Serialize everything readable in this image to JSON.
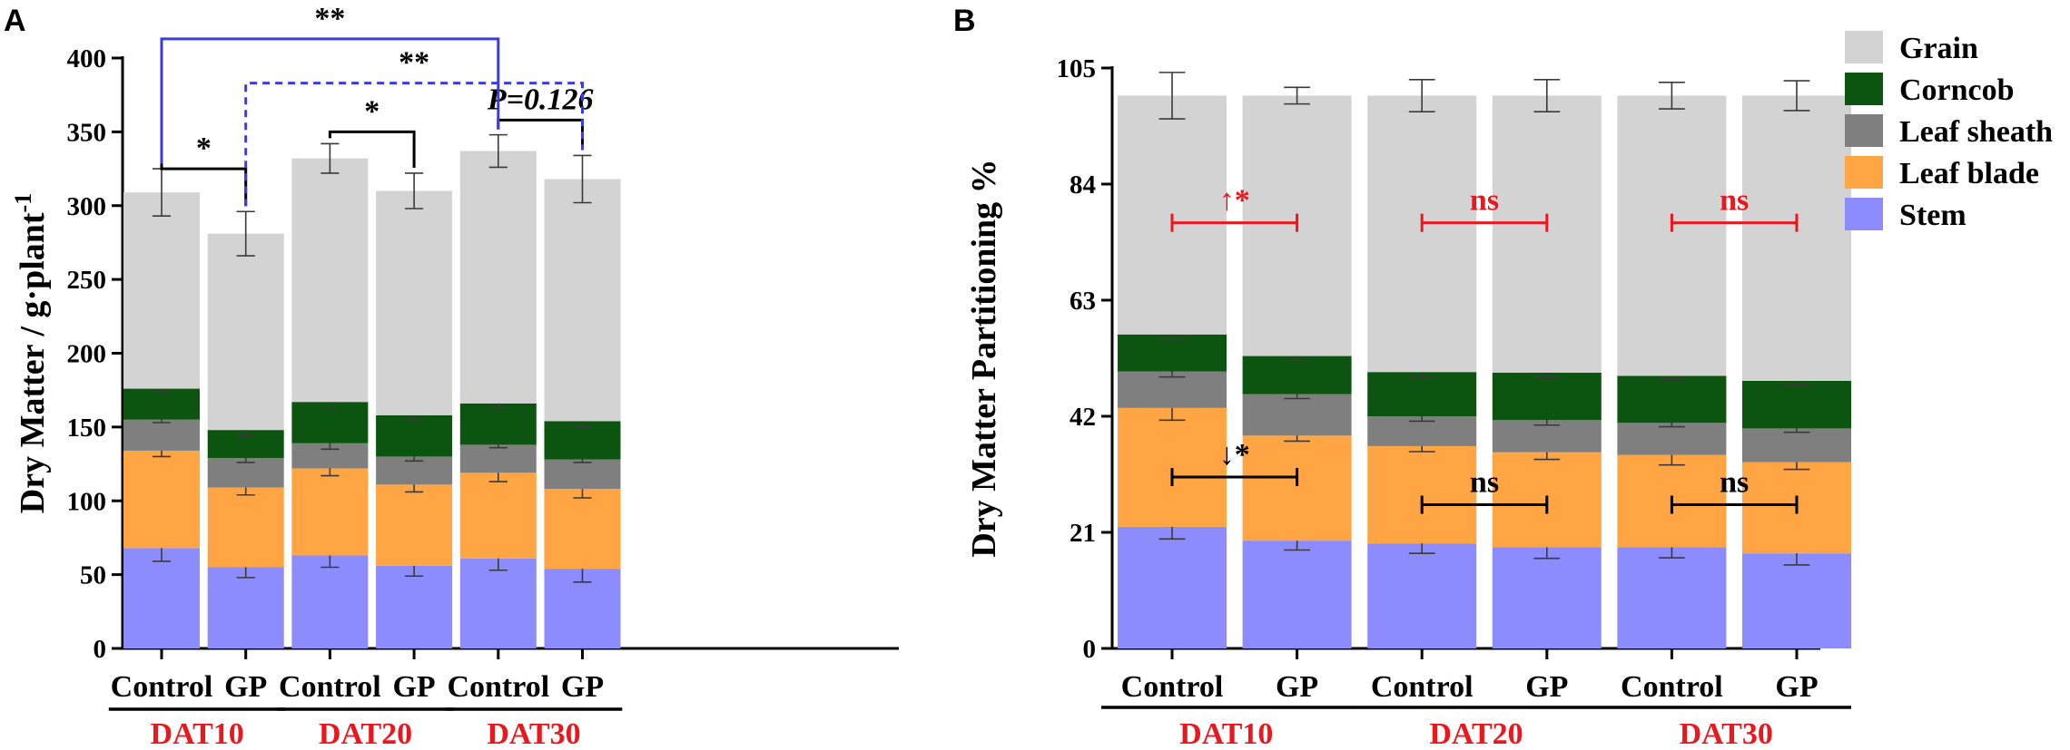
{
  "panels": {
    "A": {
      "letter": "A"
    },
    "B": {
      "letter": "B"
    }
  },
  "colors": {
    "Stem": "#8c8cff",
    "Leaf blade": "#ffa544",
    "Leaf sheath": "#7f7f7f",
    "Corncob": "#0b5511",
    "Grain": "#d3d3d3",
    "axis": "#000000",
    "red_text": "#e8181e",
    "blue_bracket": "#3b3be6"
  },
  "chart_data": [
    {
      "type": "bar",
      "stacked": true,
      "panel": "A",
      "title": "",
      "xlabel": "",
      "ylabel": "Dry Matter / g·plant",
      "ylabel_sup": "-1",
      "ylim": [
        0,
        400
      ],
      "yticks": [
        0,
        50,
        100,
        150,
        200,
        250,
        300,
        350,
        400
      ],
      "categories": [
        "Control",
        "GP",
        "Control",
        "GP",
        "Control",
        "GP"
      ],
      "groups": [
        {
          "label": "DAT10",
          "categories": [
            0,
            1
          ]
        },
        {
          "label": "DAT20",
          "categories": [
            2,
            3
          ]
        },
        {
          "label": "DAT30",
          "categories": [
            4,
            5
          ]
        }
      ],
      "series": [
        {
          "name": "Stem",
          "values": [
            68,
            55,
            63,
            56,
            61,
            54
          ],
          "errors": [
            9,
            7,
            8,
            7,
            8,
            9
          ]
        },
        {
          "name": "Leaf blade",
          "values": [
            66,
            54,
            59,
            55,
            58,
            54
          ],
          "errors": [
            4,
            5,
            5,
            5,
            6,
            6
          ]
        },
        {
          "name": "Leaf sheath",
          "values": [
            21,
            20,
            17,
            19,
            19,
            20
          ],
          "errors": [
            2,
            3,
            4,
            3,
            2,
            2
          ]
        },
        {
          "name": "Corncob",
          "values": [
            21,
            19,
            28,
            28,
            28,
            26
          ],
          "errors": [
            2,
            4,
            5,
            3,
            3,
            4
          ]
        },
        {
          "name": "Grain",
          "values": [
            133,
            133,
            165,
            152,
            171,
            164
          ],
          "errors": [
            16,
            15,
            10,
            12,
            11,
            16
          ]
        }
      ],
      "annotations": [
        {
          "text": "*",
          "from": 0,
          "to": 1,
          "height": 325,
          "color": "#000000",
          "style": "solid"
        },
        {
          "text": "*",
          "from": 2,
          "to": 3,
          "height": 350,
          "color": "#000000",
          "style": "solid"
        },
        {
          "text": "P=0.126",
          "from": 4,
          "to": 5,
          "height": 358,
          "color": "#000000",
          "style": "solid",
          "italic": true
        },
        {
          "text": "**",
          "from": 0,
          "to": 4,
          "height": 413,
          "color": "#3b3be6",
          "style": "solid"
        },
        {
          "text": "**",
          "from": 1,
          "to": 5,
          "height": 383,
          "color": "#3b3be6",
          "style": "dashed"
        }
      ]
    },
    {
      "type": "bar",
      "stacked": true,
      "panel": "B",
      "title": "",
      "xlabel": "",
      "ylabel": "Dry Matter Partitioning %",
      "ylim": [
        0,
        105
      ],
      "yticks": [
        0,
        21,
        42,
        63,
        84,
        105
      ],
      "categories": [
        "Control",
        "GP",
        "Control",
        "GP",
        "Control",
        "GP"
      ],
      "groups": [
        {
          "label": "DAT10",
          "categories": [
            0,
            1
          ]
        },
        {
          "label": "DAT20",
          "categories": [
            2,
            3
          ]
        },
        {
          "label": "DAT30",
          "categories": [
            4,
            5
          ]
        }
      ],
      "series": [
        {
          "name": "Stem",
          "values": [
            22,
            19.5,
            19,
            18.3,
            18.3,
            17.2
          ],
          "errors": [
            2.2,
            1.7,
            1.8,
            2,
            1.9,
            2.1
          ]
        },
        {
          "name": "Leaf blade",
          "values": [
            21.5,
            19,
            17.6,
            17.2,
            16.7,
            16.5
          ],
          "errors": [
            2.2,
            1,
            1,
            1.3,
            1.8,
            1.3
          ]
        },
        {
          "name": "Leaf sheath",
          "values": [
            6.6,
            7.5,
            5.4,
            5.8,
            5.8,
            6.1
          ],
          "errors": [
            1,
            0.8,
            0.9,
            0.9,
            0.7,
            0.7
          ]
        },
        {
          "name": "Corncob",
          "values": [
            6.7,
            6.9,
            8,
            8.6,
            8.5,
            8.6
          ],
          "errors": [
            0.8,
            0.8,
            1.1,
            0.9,
            0.6,
            0.8
          ]
        },
        {
          "name": "Grain",
          "values": [
            43.2,
            47.1,
            50,
            50.1,
            50.7,
            51.6
          ],
          "errors": [
            4.2,
            1.5,
            2.9,
            2.9,
            2.4,
            2.7
          ]
        }
      ],
      "annotations": [
        {
          "text": "↑*",
          "from": 0,
          "to": 1,
          "height": 77,
          "color": "#e8181e",
          "style": "capped"
        },
        {
          "text": "ns",
          "from": 2,
          "to": 3,
          "height": 77,
          "color": "#e8181e",
          "style": "capped"
        },
        {
          "text": "ns",
          "from": 4,
          "to": 5,
          "height": 77,
          "color": "#e8181e",
          "style": "capped"
        },
        {
          "text": "↓*",
          "from": 0,
          "to": 1,
          "height": 31,
          "color": "#000000",
          "style": "capped"
        },
        {
          "text": "ns",
          "from": 2,
          "to": 3,
          "height": 26,
          "color": "#000000",
          "style": "capped"
        },
        {
          "text": "ns",
          "from": 4,
          "to": 5,
          "height": 26,
          "color": "#000000",
          "style": "capped"
        }
      ]
    }
  ],
  "legend": {
    "placement": "top-right",
    "items": [
      "Grain",
      "Corncob",
      "Leaf sheath",
      "Leaf blade",
      "Stem"
    ]
  }
}
